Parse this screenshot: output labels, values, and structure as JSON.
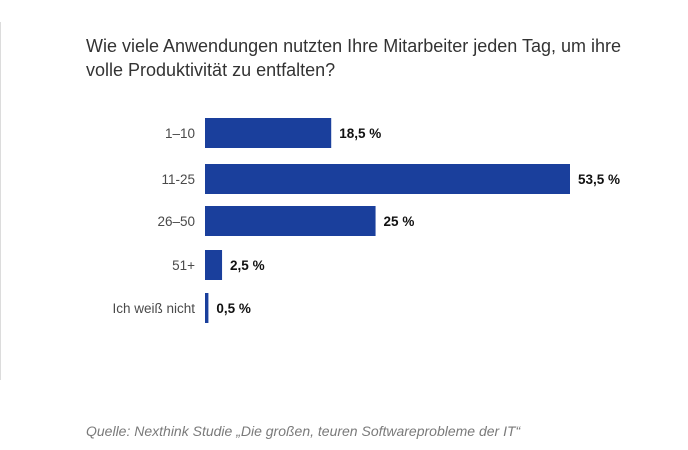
{
  "page": {
    "title": "Wie viele Anwendungen nutzten Ihre Mitarbeiter jeden Tag, um ihre volle Produktivität zu entfalten?",
    "source": "Quelle: Nexthink Studie „Die großen, teuren Softwareprobleme der IT“"
  },
  "chart_data": {
    "type": "bar",
    "orientation": "horizontal",
    "title": "Wie viele Anwendungen nutzten Ihre Mitarbeiter jeden Tag, um ihre volle Produktivität zu entfalten?",
    "categories": [
      "1–10",
      "11-25",
      "26–50",
      "51+",
      "Ich weiß nicht"
    ],
    "values": [
      18.5,
      53.5,
      25,
      2.5,
      0.5
    ],
    "value_labels": [
      "18,5 %",
      "53,5 %",
      "25 %",
      "2,5 %",
      "0,5 %"
    ],
    "xlabel": "",
    "ylabel": "",
    "xlim": [
      0,
      53.5
    ],
    "grid": false,
    "legend": "none",
    "bar_color": "#1a3f9c"
  }
}
